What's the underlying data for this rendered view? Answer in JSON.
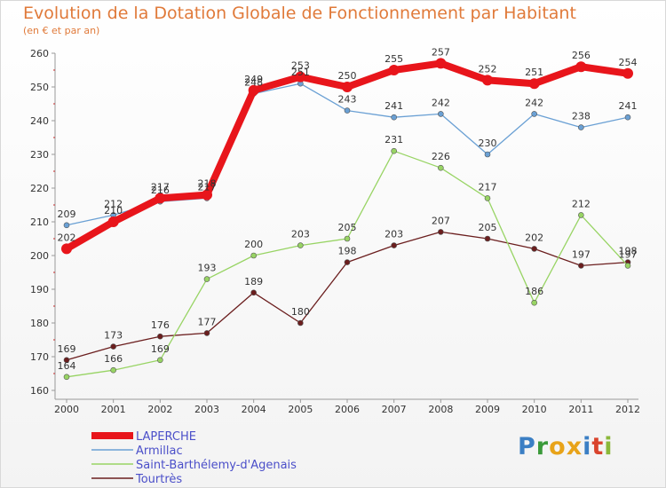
{
  "title": "Evolution de la Dotation Globale de Fonctionnement par Habitant",
  "subtitle": "(en € et par an)",
  "logo": {
    "text": "Proxiti",
    "letters": [
      {
        "ch": "P",
        "color": "#3b7fc4"
      },
      {
        "ch": "r",
        "color": "#3b9a3a"
      },
      {
        "ch": "o",
        "color": "#e8a319"
      },
      {
        "ch": "x",
        "color": "#e8a319"
      },
      {
        "ch": "i",
        "color": "#3b7fc4"
      },
      {
        "ch": "t",
        "color": "#d9442d"
      },
      {
        "ch": "i",
        "color": "#8bb83a"
      }
    ]
  },
  "chart_data": {
    "type": "line",
    "title": "Evolution de la Dotation Globale de Fonctionnement par Habitant",
    "subtitle": "(en € et par an)",
    "x": [
      2000,
      2001,
      2002,
      2003,
      2004,
      2005,
      2006,
      2007,
      2008,
      2009,
      2010,
      2011,
      2012
    ],
    "ylim": [
      160,
      260
    ],
    "yticks": [
      160,
      170,
      180,
      190,
      200,
      210,
      220,
      230,
      240,
      250,
      260
    ],
    "grid": false,
    "legend": "bottom-left",
    "series": [
      {
        "name": "LAPERCHE",
        "color": "#e8151b",
        "values": [
          202,
          210,
          217,
          218,
          249,
          253,
          250,
          255,
          257,
          252,
          251,
          256,
          254
        ]
      },
      {
        "name": "Armillac",
        "color": "#6aa0d4",
        "values": [
          209,
          212,
          216,
          217,
          248,
          251,
          243,
          241,
          242,
          230,
          242,
          238,
          241
        ]
      },
      {
        "name": "Saint-Barthélemy-d'Agenais",
        "color": "#98d464",
        "values": [
          164,
          166,
          169,
          193,
          200,
          203,
          205,
          231,
          226,
          217,
          186,
          212,
          197
        ]
      },
      {
        "name": "Tourtrès",
        "color": "#6b1e1e",
        "values": [
          169,
          173,
          176,
          177,
          189,
          180,
          198,
          203,
          207,
          205,
          202,
          197,
          198
        ]
      }
    ]
  }
}
